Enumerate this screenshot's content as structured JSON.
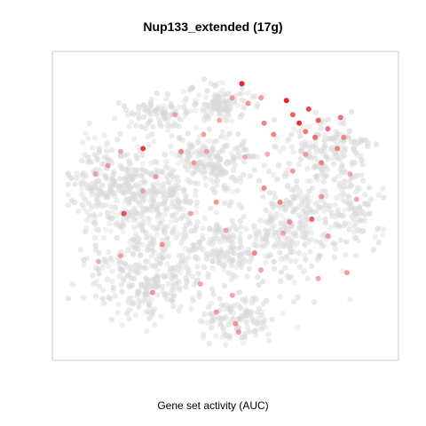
{
  "chart_data": {
    "type": "scatter",
    "title": "Nup133_extended (17g)",
    "xlabel": "Gene set activity (AUC)",
    "ylabel": "",
    "xlim": [
      0,
      1
    ],
    "ylim": [
      0,
      1
    ],
    "grid": false,
    "legend": "none",
    "colors": {
      "low": "#d9d9d9",
      "mid": "#f4a6a6",
      "high": "#e8191f",
      "frame": "#c8c8c8"
    },
    "background_clusters": [
      {
        "cx": 0.14,
        "cy": 0.57,
        "rx": 0.13,
        "ry": 0.2,
        "n": 260
      },
      {
        "cx": 0.3,
        "cy": 0.52,
        "rx": 0.13,
        "ry": 0.17,
        "n": 220
      },
      {
        "cx": 0.26,
        "cy": 0.24,
        "rx": 0.18,
        "ry": 0.16,
        "n": 280
      },
      {
        "cx": 0.5,
        "cy": 0.35,
        "rx": 0.12,
        "ry": 0.12,
        "n": 160
      },
      {
        "cx": 0.55,
        "cy": 0.1,
        "rx": 0.12,
        "ry": 0.09,
        "n": 120
      },
      {
        "cx": 0.46,
        "cy": 0.66,
        "rx": 0.13,
        "ry": 0.1,
        "n": 170
      },
      {
        "cx": 0.72,
        "cy": 0.42,
        "rx": 0.13,
        "ry": 0.22,
        "n": 240
      },
      {
        "cx": 0.82,
        "cy": 0.7,
        "rx": 0.14,
        "ry": 0.1,
        "n": 150
      },
      {
        "cx": 0.9,
        "cy": 0.5,
        "rx": 0.09,
        "ry": 0.16,
        "n": 110
      },
      {
        "cx": 0.48,
        "cy": 0.87,
        "rx": 0.1,
        "ry": 0.07,
        "n": 110
      },
      {
        "cx": 0.3,
        "cy": 0.82,
        "rx": 0.1,
        "ry": 0.07,
        "n": 90
      }
    ],
    "highlight_points": [
      [
        0.55,
        0.93,
        0.95
      ],
      [
        0.69,
        0.87,
        0.95
      ],
      [
        0.73,
        0.79,
        0.9
      ],
      [
        0.71,
        0.82,
        0.7
      ],
      [
        0.76,
        0.84,
        0.8
      ],
      [
        0.79,
        0.8,
        0.7
      ],
      [
        0.82,
        0.77,
        0.6
      ],
      [
        0.86,
        0.81,
        0.6
      ],
      [
        0.75,
        0.76,
        0.55
      ],
      [
        0.78,
        0.74,
        0.6
      ],
      [
        0.62,
        0.79,
        0.5
      ],
      [
        0.65,
        0.75,
        0.5
      ],
      [
        0.85,
        0.7,
        0.5
      ],
      [
        0.87,
        0.74,
        0.45
      ],
      [
        0.8,
        0.65,
        0.5
      ],
      [
        0.57,
        0.86,
        0.4
      ],
      [
        0.52,
        0.88,
        0.35
      ],
      [
        0.48,
        0.8,
        0.3
      ],
      [
        0.43,
        0.75,
        0.35
      ],
      [
        0.36,
        0.69,
        0.45
      ],
      [
        0.4,
        0.65,
        0.35
      ],
      [
        0.24,
        0.7,
        0.85
      ],
      [
        0.17,
        0.69,
        0.3
      ],
      [
        0.13,
        0.64,
        0.35
      ],
      [
        0.09,
        0.61,
        0.25
      ],
      [
        0.18,
        0.47,
        0.75
      ],
      [
        0.28,
        0.6,
        0.3
      ],
      [
        0.24,
        0.55,
        0.25
      ],
      [
        0.3,
        0.36,
        0.4
      ],
      [
        0.27,
        0.19,
        0.4
      ],
      [
        0.17,
        0.32,
        0.3
      ],
      [
        0.1,
        0.3,
        0.25
      ],
      [
        0.47,
        0.51,
        0.4
      ],
      [
        0.5,
        0.41,
        0.25
      ],
      [
        0.59,
        0.33,
        0.45
      ],
      [
        0.61,
        0.27,
        0.3
      ],
      [
        0.7,
        0.44,
        0.4
      ],
      [
        0.77,
        0.45,
        0.65
      ],
      [
        0.8,
        0.53,
        0.35
      ],
      [
        0.82,
        0.39,
        0.35
      ],
      [
        0.91,
        0.52,
        0.3
      ],
      [
        0.89,
        0.61,
        0.3
      ],
      [
        0.88,
        0.26,
        0.35
      ],
      [
        0.79,
        0.24,
        0.3
      ],
      [
        0.62,
        0.56,
        0.45
      ],
      [
        0.67,
        0.51,
        0.5
      ],
      [
        0.71,
        0.62,
        0.35
      ],
      [
        0.39,
        0.47,
        0.25
      ],
      [
        0.42,
        0.22,
        0.3
      ],
      [
        0.52,
        0.18,
        0.3
      ],
      [
        0.47,
        0.12,
        0.35
      ],
      [
        0.54,
        0.05,
        0.35
      ],
      [
        0.53,
        0.08,
        0.4
      ],
      [
        0.61,
        0.88,
        0.35
      ],
      [
        0.63,
        0.68,
        0.25
      ],
      [
        0.75,
        0.68,
        0.3
      ],
      [
        0.34,
        0.82,
        0.25
      ],
      [
        0.44,
        0.69,
        0.3
      ],
      [
        0.56,
        0.67,
        0.25
      ],
      [
        0.68,
        0.4,
        0.3
      ]
    ]
  }
}
